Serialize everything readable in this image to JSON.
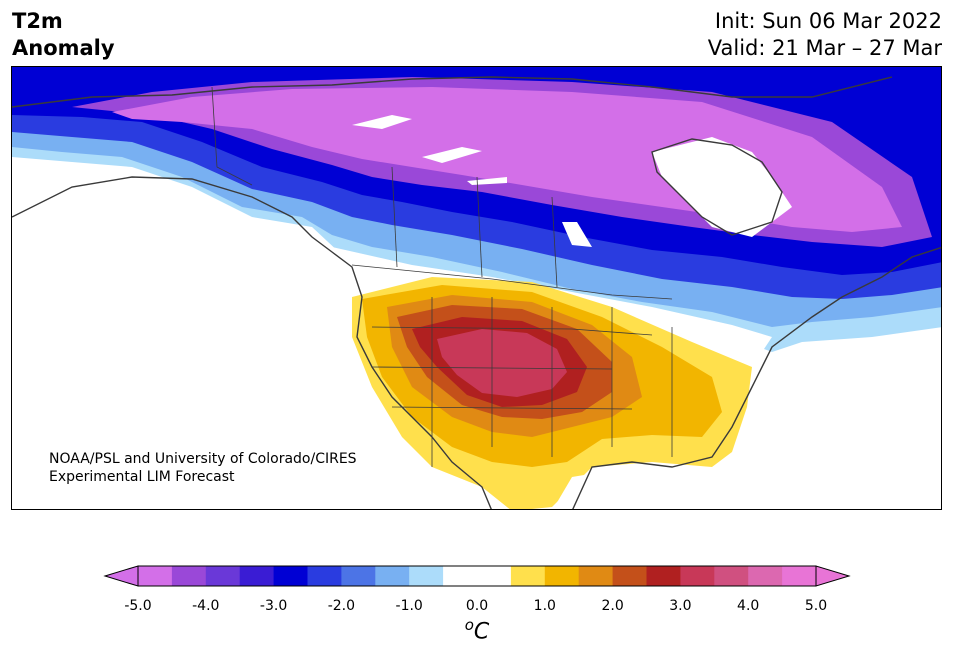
{
  "header": {
    "title_line1": "T2m",
    "title_line2": "Anomaly",
    "init": "Init: Sun 06 Mar 2022",
    "valid": "Valid: 21 Mar – 27 Mar"
  },
  "credit": {
    "line1": "NOAA/PSL and University of Colorado/CIRES",
    "line2": "Experimental LIM Forecast"
  },
  "colorbar": {
    "ticks": [
      "-5.0",
      "-4.0",
      "-3.0",
      "-2.0",
      "-1.0",
      "0.0",
      "1.0",
      "2.0",
      "3.0",
      "4.0",
      "5.0"
    ],
    "units_base": "C",
    "units_sup": "o",
    "colors": [
      "#d36fe8",
      "#9a48d8",
      "#6a38d8",
      "#3a1cd4",
      "#0000d4",
      "#2a3ce0",
      "#4c74e6",
      "#78b0f2",
      "#acdcfa",
      "#ffffff",
      "#ffffff",
      "#ffe04c",
      "#f2b500",
      "#e08a14",
      "#c4501a",
      "#b02020",
      "#c83858",
      "#d05080",
      "#dc68b0",
      "#e874d6"
    ]
  },
  "map": {
    "region": "North America",
    "colors": {
      "cold_extreme": "#d36fe8",
      "cold_purple": "#9a48d8",
      "cold_blue": "#0000d4",
      "cold_mid": "#2a3ce0",
      "cold_light": "#78b0f2",
      "cold_pale": "#acdcfa",
      "warm_yellow": "#ffe04c",
      "warm_gold": "#f2b500",
      "warm_orange": "#e08a14",
      "warm_rust": "#c4501a",
      "warm_red": "#b02020",
      "warm_rose": "#c83858"
    }
  }
}
